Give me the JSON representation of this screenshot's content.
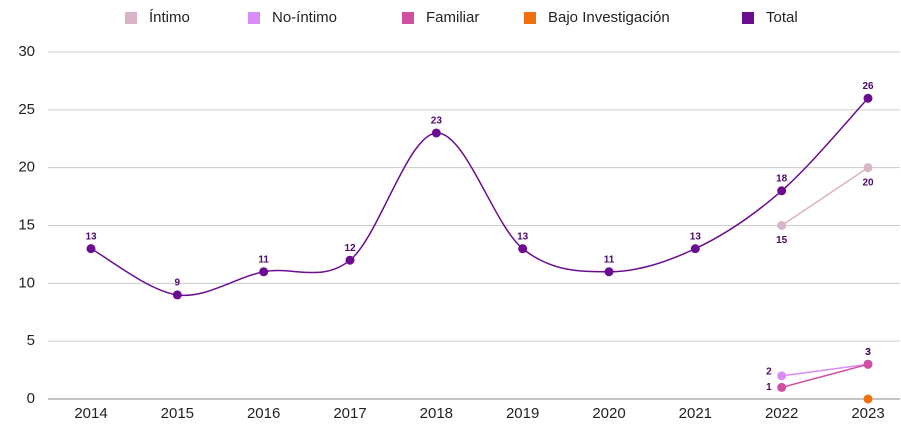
{
  "chart_data": {
    "type": "line",
    "categories": [
      "2014",
      "2015",
      "2016",
      "2017",
      "2018",
      "2019",
      "2020",
      "2021",
      "2022",
      "2023"
    ],
    "series": [
      {
        "name": "Íntimo",
        "color": "#d9b3c8",
        "values": [
          null,
          null,
          null,
          null,
          null,
          null,
          null,
          null,
          15,
          20
        ]
      },
      {
        "name": "No-íntimo",
        "color": "#d98cf5",
        "values": [
          null,
          null,
          null,
          null,
          null,
          null,
          null,
          null,
          2,
          3
        ]
      },
      {
        "name": "Familiar",
        "color": "#d14fa0",
        "values": [
          null,
          null,
          null,
          null,
          null,
          null,
          null,
          null,
          1,
          3
        ]
      },
      {
        "name": "Bajo Investigación",
        "color": "#f07010",
        "values": [
          null,
          null,
          null,
          null,
          null,
          null,
          null,
          null,
          null,
          0
        ],
        "labels": false
      },
      {
        "name": "Total",
        "color": "#6a0d91",
        "values": [
          13,
          9,
          11,
          12,
          23,
          13,
          11,
          13,
          18,
          26
        ]
      }
    ],
    "ylim": [
      0,
      30
    ],
    "yticks": [
      0,
      5,
      10,
      15,
      20,
      25,
      30
    ],
    "grid": true,
    "legend": "top"
  }
}
